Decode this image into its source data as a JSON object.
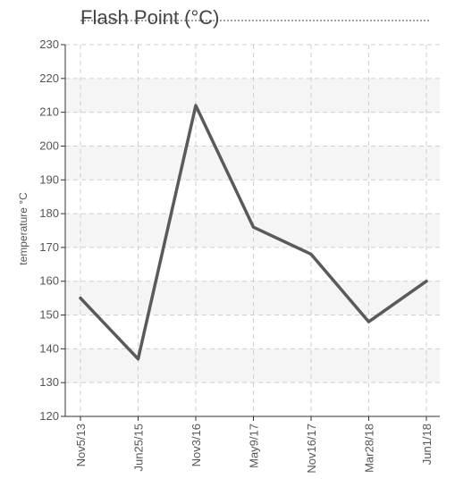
{
  "chart_data": {
    "type": "line",
    "title": "Flash Point (°C)",
    "ylabel": "temperature °C",
    "xlabel": "",
    "categories": [
      "Nov5/13",
      "Jun25/15",
      "Nov3/16",
      "May9/17",
      "Nov16/17",
      "Mar28/18",
      "Jun1/18"
    ],
    "series": [
      {
        "values": [
          155,
          137,
          212,
          176,
          168,
          148,
          160
        ]
      }
    ],
    "ylim": [
      120,
      230
    ],
    "yticks": [
      120,
      130,
      140,
      150,
      160,
      170,
      180,
      190,
      200,
      210,
      220,
      230
    ],
    "grid": true,
    "colors": {
      "line": "#5a5a5a",
      "band": "#f5f5f5",
      "grid": "#cfcfcf",
      "axis": "#333333"
    }
  }
}
